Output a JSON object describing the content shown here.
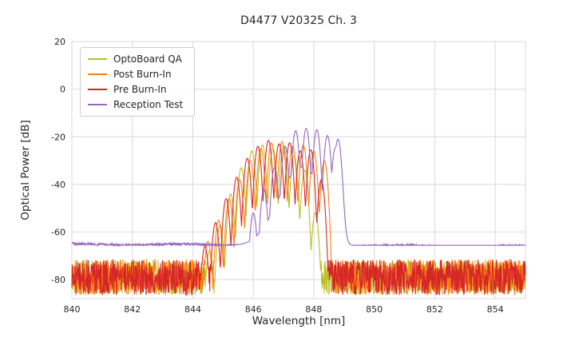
{
  "chart_data": {
    "type": "line",
    "title": "D4477 V20325 Ch. 3",
    "xlabel": "Wavelength [nm]",
    "ylabel": "Optical Power [dB]",
    "xlim": [
      840,
      855
    ],
    "ylim": [
      -88,
      20
    ],
    "xticks": [
      840,
      842,
      844,
      846,
      848,
      850,
      852,
      854
    ],
    "yticks": [
      -80,
      -60,
      -40,
      -20,
      0,
      20
    ],
    "grid": true,
    "legend_position": "upper-left",
    "colors": {
      "grid": "#d9d9d9",
      "background": "#ffffff",
      "text": "#262626"
    },
    "mode_spacing_nm": 0.35,
    "series": [
      {
        "name": "OptoBoard QA",
        "color": "#bcbd22",
        "noise_floor_db": -79,
        "noise_amplitude_db": 15,
        "floor_wiggle_db": 0,
        "floor_slope_db_per_nm": 0,
        "comb_sharpness": 800,
        "modes": [
          [
            844.55,
            -68
          ],
          [
            844.9,
            -57
          ],
          [
            845.25,
            -44
          ],
          [
            845.6,
            -33
          ],
          [
            845.95,
            -26
          ],
          [
            846.3,
            -23.5
          ],
          [
            846.65,
            -25
          ],
          [
            847.0,
            -24
          ],
          [
            847.35,
            -28
          ],
          [
            847.7,
            -34
          ],
          [
            848.05,
            -52
          ]
        ]
      },
      {
        "name": "Post Burn-In",
        "color": "#ff7f0e",
        "noise_floor_db": -79,
        "noise_amplitude_db": 15,
        "floor_wiggle_db": 0,
        "floor_slope_db_per_nm": 0,
        "comb_sharpness": 800,
        "modes": [
          [
            844.5,
            -64
          ],
          [
            844.85,
            -55
          ],
          [
            845.2,
            -46
          ],
          [
            845.55,
            -38
          ],
          [
            845.9,
            -30
          ],
          [
            846.25,
            -25
          ],
          [
            846.6,
            -22.5
          ],
          [
            846.95,
            -22
          ],
          [
            847.3,
            -24
          ],
          [
            847.65,
            -23.5
          ],
          [
            848.0,
            -26
          ],
          [
            848.35,
            -30
          ]
        ]
      },
      {
        "name": "Pre Burn-In",
        "color": "#d62728",
        "noise_floor_db": -79,
        "noise_amplitude_db": 15,
        "floor_wiggle_db": 0,
        "floor_slope_db_per_nm": 0,
        "comb_sharpness": 800,
        "modes": [
          [
            844.4,
            -66
          ],
          [
            844.75,
            -56
          ],
          [
            845.1,
            -46
          ],
          [
            845.45,
            -37
          ],
          [
            845.8,
            -29
          ],
          [
            846.15,
            -24
          ],
          [
            846.5,
            -21.5
          ],
          [
            846.85,
            -23
          ],
          [
            847.2,
            -22.5
          ],
          [
            847.55,
            -26
          ],
          [
            847.9,
            -25.5
          ],
          [
            848.25,
            -38
          ]
        ]
      },
      {
        "name": "Reception Test",
        "color": "#9467bd",
        "noise_floor_db": -65.6,
        "noise_amplitude_db": 1.2,
        "floor_wiggle_db": 0.3,
        "floor_slope_db_per_nm": -0.07,
        "comb_sharpness": 800,
        "pedestal": {
          "center": 847.6,
          "amplitude": 33,
          "sigma": 1.1,
          "rise_x": 845.7,
          "rise_scale": 0.35,
          "fall_x": 848.95,
          "fall_scale": 0.05
        },
        "shelf": {
          "level": -22.5,
          "from": 848.55,
          "to": 848.98,
          "edge": 0.05
        },
        "modes": [
          [
            846.0,
            -52
          ],
          [
            846.35,
            -42
          ],
          [
            846.7,
            -33
          ],
          [
            847.05,
            -24
          ],
          [
            847.4,
            -17.5
          ],
          [
            847.75,
            -16.5
          ],
          [
            848.1,
            -17
          ],
          [
            848.45,
            -19.5
          ],
          [
            848.8,
            -21
          ]
        ]
      }
    ]
  }
}
